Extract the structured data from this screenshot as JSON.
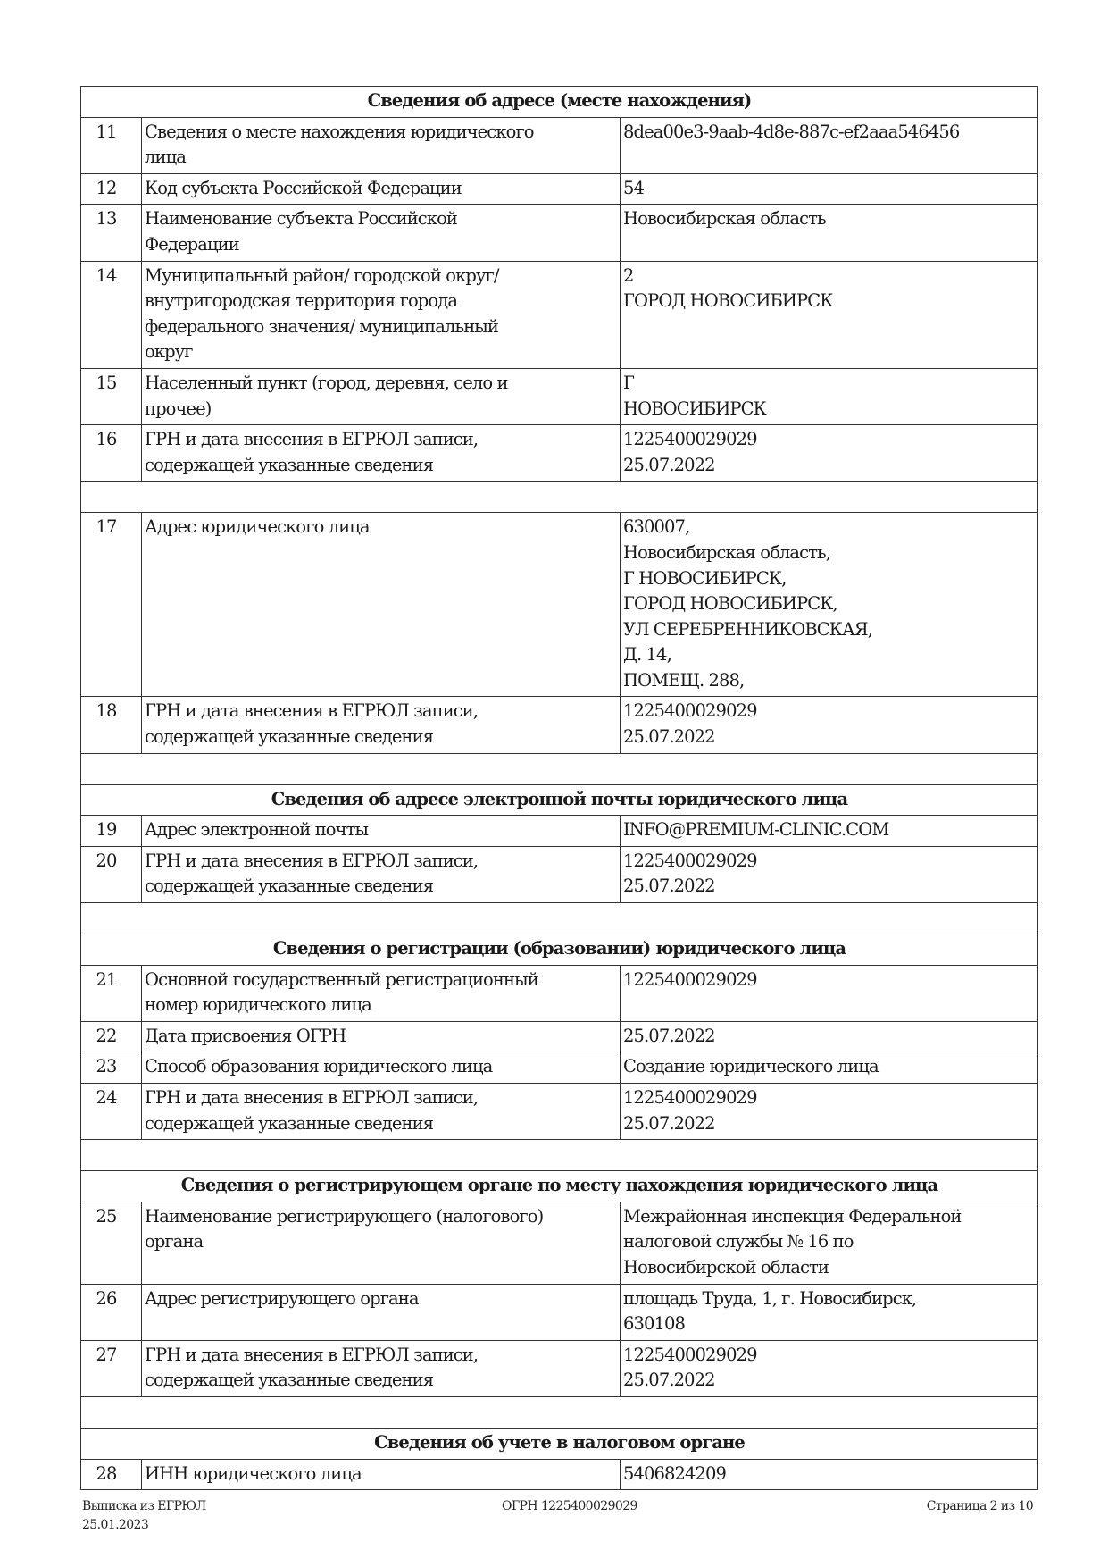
{
  "rows": [
    {
      "type": "header",
      "text": "Сведения об адресе (месте нахождения)"
    },
    {
      "type": "row",
      "num": "11",
      "label": [
        "Сведения о месте нахождения юридического",
        "лица"
      ],
      "value": [
        "8dea00e3-9aab-4d8e-887c-ef2aaa546456"
      ]
    },
    {
      "type": "row",
      "num": "12",
      "label": [
        "Код субъекта Российской Федерации"
      ],
      "value": [
        "54"
      ]
    },
    {
      "type": "row",
      "num": "13",
      "label": [
        "Наименование субъекта Российской",
        "Федерации"
      ],
      "value": [
        "Новосибирская область"
      ]
    },
    {
      "type": "row",
      "num": "14",
      "label": [
        "Муниципальный район/ городской округ/",
        "внутригородская территория города",
        "федерального значения/ муниципальный",
        "округ"
      ],
      "value": [
        "2",
        "ГОРОД НОВОСИБИРСК"
      ]
    },
    {
      "type": "row",
      "num": "15",
      "label": [
        "Населенный пункт (город, деревня, село и",
        "прочее)"
      ],
      "value": [
        "Г",
        "НОВОСИБИРСК"
      ]
    },
    {
      "type": "row",
      "num": "16",
      "label": [
        "ГРН и дата внесения в ЕГРЮЛ записи,",
        "содержащей указанные сведения"
      ],
      "value": [
        "1225400029029",
        "25.07.2022"
      ]
    },
    {
      "type": "blank"
    },
    {
      "type": "row",
      "num": "17",
      "label": [
        "Адрес юридического лица"
      ],
      "value": [
        "630007,",
        "Новосибирская область,",
        "Г НОВОСИБИРСК,",
        "ГОРОД НОВОСИБИРСК,",
        "УЛ СЕРЕБРЕННИКОВСКАЯ,",
        "Д. 14,",
        "ПОМЕЩ. 288,"
      ]
    },
    {
      "type": "row",
      "num": "18",
      "label": [
        "ГРН и дата внесения в ЕГРЮЛ записи,",
        "содержащей указанные сведения"
      ],
      "value": [
        "1225400029029",
        "25.07.2022"
      ]
    },
    {
      "type": "blank"
    },
    {
      "type": "header",
      "text": "Сведения об адресе электронной почты юридического лица"
    },
    {
      "type": "row",
      "num": "19",
      "label": [
        "Адрес электронной почты"
      ],
      "value": [
        "INFO@PREMIUM-CLINIC.COM"
      ]
    },
    {
      "type": "row",
      "num": "20",
      "label": [
        "ГРН и дата внесения в ЕГРЮЛ записи,",
        "содержащей указанные сведения"
      ],
      "value": [
        "1225400029029",
        "25.07.2022"
      ]
    },
    {
      "type": "blank"
    },
    {
      "type": "header",
      "text": "Сведения о регистрации (образовании) юридического лица"
    },
    {
      "type": "row",
      "num": "21",
      "label": [
        "Основной государственный регистрационный",
        "номер юридического лица"
      ],
      "value": [
        "1225400029029"
      ]
    },
    {
      "type": "row",
      "num": "22",
      "label": [
        "Дата присвоения ОГРН"
      ],
      "value": [
        "25.07.2022"
      ]
    },
    {
      "type": "row",
      "num": "23",
      "label": [
        "Способ образования юридического лица"
      ],
      "value": [
        "Создание юридического лица"
      ]
    },
    {
      "type": "row",
      "num": "24",
      "label": [
        "ГРН и дата внесения в ЕГРЮЛ записи,",
        "содержащей указанные сведения"
      ],
      "value": [
        "1225400029029",
        "25.07.2022"
      ]
    },
    {
      "type": "blank"
    },
    {
      "type": "header",
      "text": "Сведения о регистрирующем органе по месту нахождения юридического лица"
    },
    {
      "type": "row",
      "num": "25",
      "label": [
        "Наименование регистрирующего (налогового)",
        "органа"
      ],
      "value": [
        "Межрайонная инспекция Федеральной",
        "налоговой службы № 16 по",
        "Новосибирской области"
      ]
    },
    {
      "type": "row",
      "num": "26",
      "label": [
        "Адрес регистрирующего органа"
      ],
      "value": [
        "площадь Труда, 1, г. Новосибирск,",
        "630108"
      ]
    },
    {
      "type": "row",
      "num": "27",
      "label": [
        "ГРН и дата внесения в ЕГРЮЛ записи,",
        "содержащей указанные сведения"
      ],
      "value": [
        "1225400029029",
        "25.07.2022"
      ]
    },
    {
      "type": "blank"
    },
    {
      "type": "header",
      "text": "Сведения об учете в налоговом органе"
    },
    {
      "type": "row",
      "num": "28",
      "label": [
        "ИНН юридического лица"
      ],
      "value": [
        "5406824209"
      ]
    }
  ],
  "footer": {
    "doc_title": "Выписка из ЕГРЮЛ",
    "date": "25.01.2023",
    "ogrn": "ОГРН 1225400029029",
    "page": "Страница 2 из 10"
  }
}
